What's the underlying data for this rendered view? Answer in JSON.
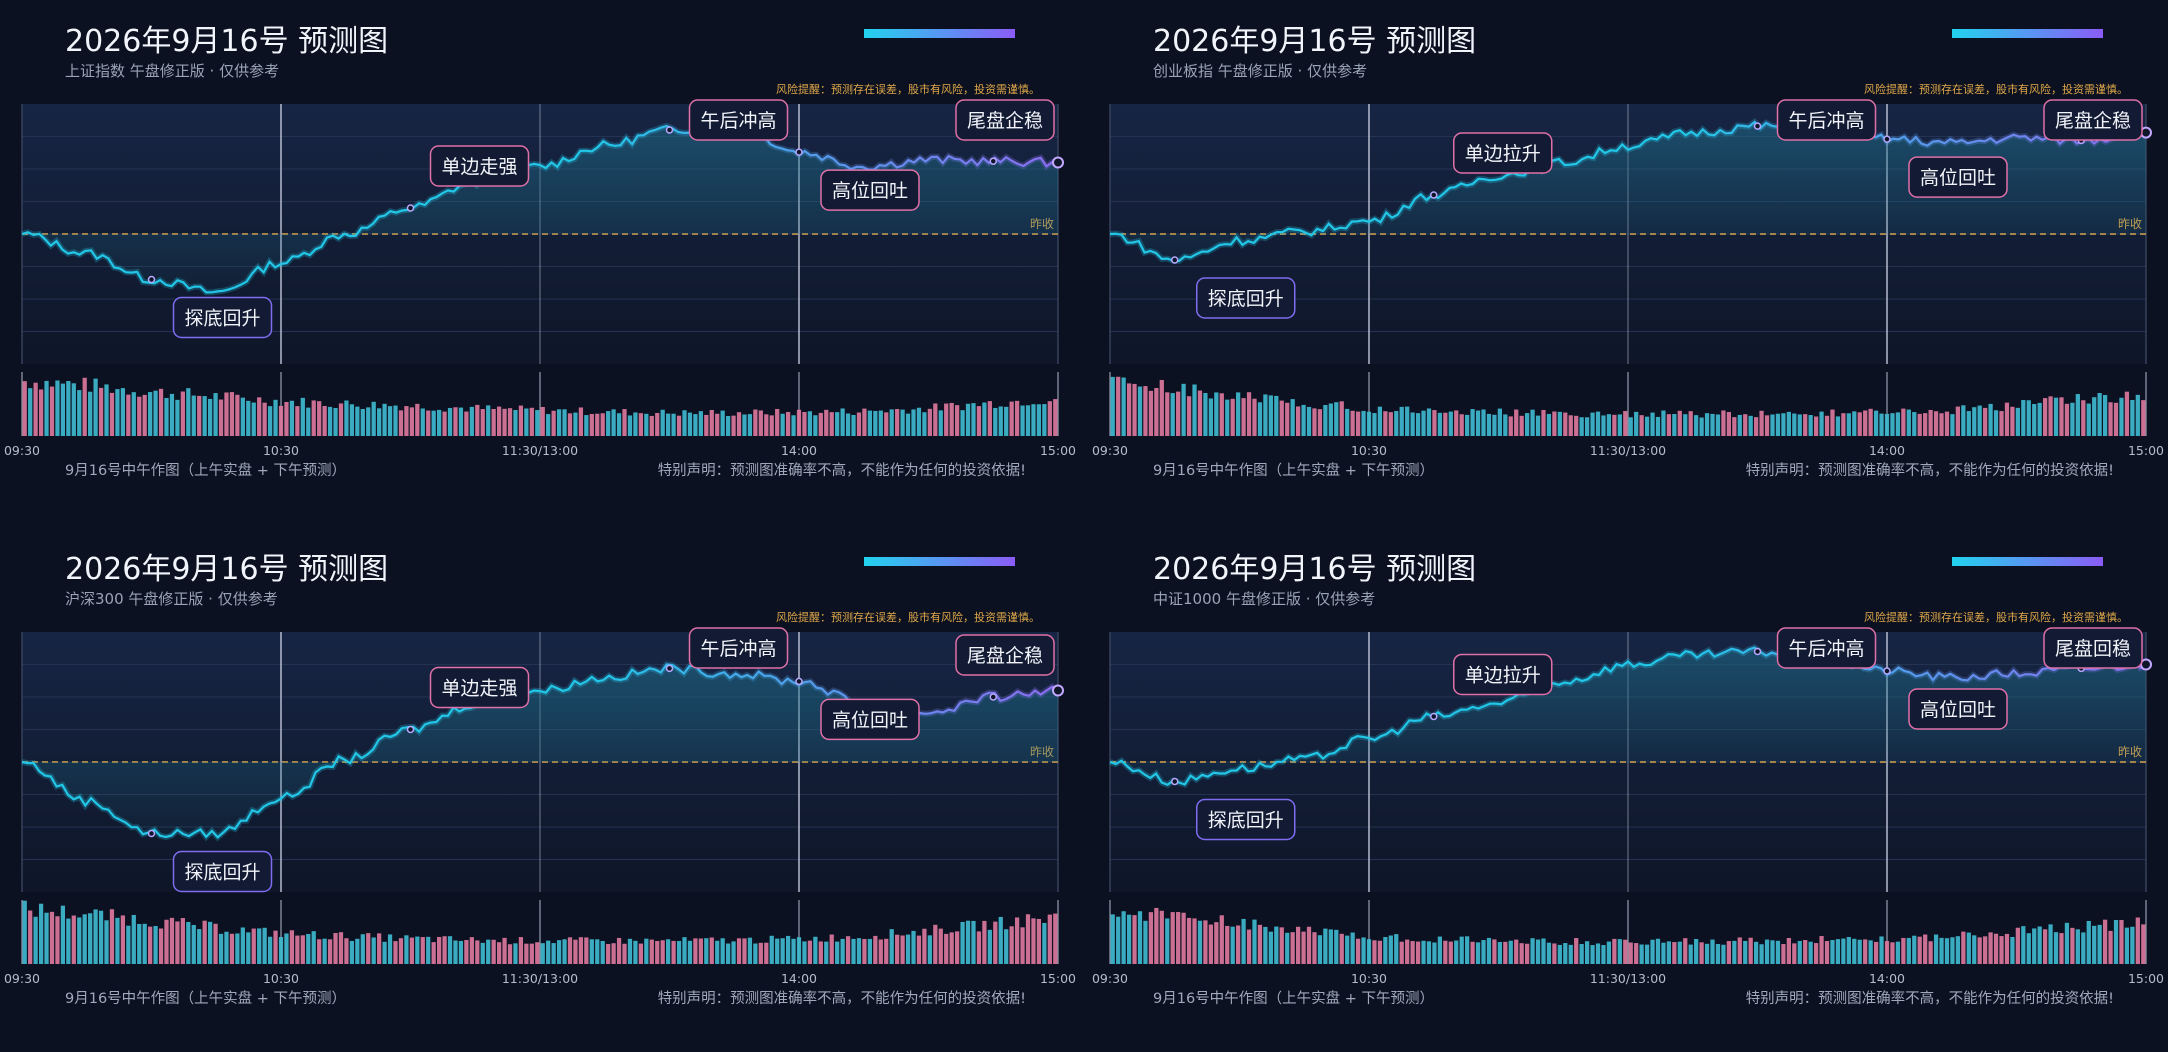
{
  "risk_note": "风险提醒：预测存在误差，股市有风险，投资需谨慎。",
  "footer_left": "9月16号中午作图（上午实盘 + 下午预测）",
  "footer_right": "特别声明：预测图准确率不高，不能作为任何的投资依据!",
  "prev_close_label": "昨收",
  "colors": {
    "background": "#0b1120",
    "line": "#22c7e8",
    "line_afternoon": "#8b6cf0",
    "prev_close": "#e0a84a",
    "volume_up": "#e07aa0",
    "volume_down": "#3fbcd2",
    "annotation_pink": "#e070a8",
    "annotation_purple": "#7f6cf0",
    "accent_start": "#22d3ee",
    "accent_end": "#8b5cf6"
  },
  "chart_data": [
    {
      "type": "line",
      "title": "2026年9月16号 预测图",
      "subtitle": "上证指数 午盘修正版 · 仅供参考",
      "x_ticks": [
        "09:30",
        "10:30",
        "11:30/13:00",
        "14:00",
        "15:00"
      ],
      "prev_close": 0,
      "ylim": [
        -1,
        1
      ],
      "series": [
        {
          "x": [
            "09:30",
            "09:45",
            "10:00",
            "10:15",
            "10:30",
            "10:45",
            "11:00",
            "11:15",
            "11:30/13:00",
            "13:15",
            "13:30",
            "13:45",
            "14:00",
            "14:15",
            "14:30",
            "14:45",
            "15:00"
          ],
          "y": [
            0.0,
            -0.15,
            -0.35,
            -0.45,
            -0.22,
            0.0,
            0.2,
            0.4,
            0.52,
            0.68,
            0.8,
            0.85,
            0.63,
            0.52,
            0.57,
            0.56,
            0.55
          ]
        }
      ],
      "volume": [
        1.0,
        0.92,
        0.8,
        0.72,
        0.63,
        0.58,
        0.55,
        0.5,
        0.47,
        0.44,
        0.42,
        0.42,
        0.43,
        0.45,
        0.5,
        0.6,
        0.68
      ],
      "annotations": [
        {
          "label": "探底回升",
          "x": "10:00",
          "style": "purple",
          "pos": "below"
        },
        {
          "label": "单边走强",
          "x": "11:00",
          "style": "pink",
          "pos": "above"
        },
        {
          "label": "午后冲高",
          "x": "13:30",
          "style": "pink",
          "pos": "above"
        },
        {
          "label": "高位回吐",
          "x": "14:00",
          "style": "pink",
          "pos": "below"
        },
        {
          "label": "尾盘企稳",
          "x": "14:45",
          "style": "pink",
          "pos": "above"
        }
      ]
    },
    {
      "type": "line",
      "title": "2026年9月16号 预测图",
      "subtitle": "创业板指 午盘修正版 · 仅供参考",
      "x_ticks": [
        "09:30",
        "10:30",
        "11:30/13:00",
        "14:00",
        "15:00"
      ],
      "prev_close": 0,
      "ylim": [
        -1,
        1
      ],
      "series": [
        {
          "x": [
            "09:30",
            "09:45",
            "10:00",
            "10:15",
            "10:30",
            "10:45",
            "11:00",
            "11:15",
            "11:30/13:00",
            "13:15",
            "13:30",
            "13:45",
            "14:00",
            "14:15",
            "14:30",
            "14:45",
            "15:00"
          ],
          "y": [
            0.0,
            -0.2,
            -0.05,
            0.02,
            0.1,
            0.3,
            0.45,
            0.55,
            0.68,
            0.78,
            0.83,
            0.82,
            0.73,
            0.7,
            0.74,
            0.72,
            0.78
          ]
        }
      ],
      "volume": [
        1.0,
        0.85,
        0.72,
        0.6,
        0.5,
        0.46,
        0.43,
        0.4,
        0.4,
        0.4,
        0.4,
        0.41,
        0.43,
        0.47,
        0.55,
        0.68,
        0.75
      ],
      "annotations": [
        {
          "label": "探底回升",
          "x": "09:45",
          "style": "purple",
          "pos": "below"
        },
        {
          "label": "单边拉升",
          "x": "10:45",
          "style": "pink",
          "pos": "above"
        },
        {
          "label": "午后冲高",
          "x": "13:30",
          "style": "pink",
          "pos": "above"
        },
        {
          "label": "高位回吐",
          "x": "14:00",
          "style": "pink",
          "pos": "below"
        },
        {
          "label": "尾盘企稳",
          "x": "14:45",
          "style": "pink",
          "pos": "above"
        }
      ]
    },
    {
      "type": "line",
      "title": "2026年9月16号 预测图",
      "subtitle": "沪深300 午盘修正版 · 仅供参考",
      "x_ticks": [
        "09:30",
        "10:30",
        "11:30/13:00",
        "14:00",
        "15:00"
      ],
      "prev_close": 0,
      "ylim": [
        -1,
        1
      ],
      "series": [
        {
          "x": [
            "09:30",
            "09:45",
            "10:00",
            "10:15",
            "10:30",
            "10:45",
            "11:00",
            "11:15",
            "11:30/13:00",
            "13:15",
            "13:30",
            "13:45",
            "14:00",
            "14:15",
            "14:30",
            "14:45",
            "15:00"
          ],
          "y": [
            0.0,
            -0.3,
            -0.55,
            -0.55,
            -0.28,
            0.02,
            0.25,
            0.45,
            0.55,
            0.65,
            0.72,
            0.68,
            0.62,
            0.45,
            0.38,
            0.5,
            0.55
          ]
        }
      ],
      "volume": [
        1.0,
        0.9,
        0.78,
        0.65,
        0.55,
        0.5,
        0.46,
        0.43,
        0.42,
        0.42,
        0.42,
        0.43,
        0.45,
        0.5,
        0.6,
        0.72,
        0.85
      ],
      "annotations": [
        {
          "label": "探底回升",
          "x": "10:00",
          "style": "purple",
          "pos": "below"
        },
        {
          "label": "单边走强",
          "x": "11:00",
          "style": "pink",
          "pos": "above"
        },
        {
          "label": "午后冲高",
          "x": "13:30",
          "style": "pink",
          "pos": "above"
        },
        {
          "label": "高位回吐",
          "x": "14:00",
          "style": "pink",
          "pos": "below"
        },
        {
          "label": "尾盘企稳",
          "x": "14:45",
          "style": "pink",
          "pos": "above"
        }
      ]
    },
    {
      "type": "line",
      "title": "2026年9月16号 预测图",
      "subtitle": "中证1000 午盘修正版 · 仅供参考",
      "x_ticks": [
        "09:30",
        "10:30",
        "11:30/13:00",
        "14:00",
        "15:00"
      ],
      "prev_close": 0,
      "ylim": [
        -1,
        1
      ],
      "series": [
        {
          "x": [
            "09:30",
            "09:45",
            "10:00",
            "10:15",
            "10:30",
            "10:45",
            "11:00",
            "11:15",
            "11:30/13:00",
            "13:15",
            "13:30",
            "13:45",
            "14:00",
            "14:15",
            "14:30",
            "14:45",
            "15:00"
          ],
          "y": [
            0.0,
            -0.15,
            -0.05,
            0.02,
            0.18,
            0.35,
            0.45,
            0.62,
            0.75,
            0.82,
            0.85,
            0.8,
            0.7,
            0.65,
            0.68,
            0.72,
            0.75
          ]
        }
      ],
      "volume": [
        1.0,
        0.86,
        0.72,
        0.6,
        0.5,
        0.46,
        0.43,
        0.41,
        0.41,
        0.41,
        0.42,
        0.44,
        0.46,
        0.5,
        0.58,
        0.68,
        0.75
      ],
      "annotations": [
        {
          "label": "探底回升",
          "x": "09:45",
          "style": "purple",
          "pos": "below"
        },
        {
          "label": "单边拉升",
          "x": "10:45",
          "style": "pink",
          "pos": "above"
        },
        {
          "label": "午后冲高",
          "x": "13:30",
          "style": "pink",
          "pos": "above"
        },
        {
          "label": "高位回吐",
          "x": "14:00",
          "style": "pink",
          "pos": "below"
        },
        {
          "label": "尾盘回稳",
          "x": "14:45",
          "style": "pink",
          "pos": "above"
        }
      ]
    }
  ]
}
